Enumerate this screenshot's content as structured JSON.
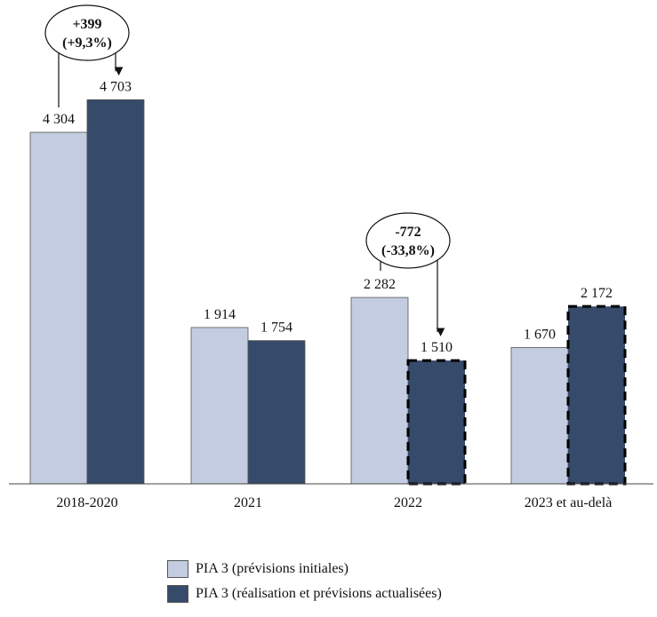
{
  "chart_data": {
    "type": "bar",
    "categories": [
      "2018-2020",
      "2021",
      "2022",
      "2023 et au-delà"
    ],
    "series": [
      {
        "name": "PIA 3 (prévisions initiales)",
        "values": [
          4304,
          1914,
          2282,
          1670
        ],
        "labels": [
          "4 304",
          "1 914",
          "2 282",
          "1 670"
        ],
        "color": "#c3cce0",
        "dashed": [
          false,
          false,
          false,
          false
        ]
      },
      {
        "name": "PIA 3 (réalisation et prévisions actualisées)",
        "values": [
          4703,
          1754,
          1510,
          2172
        ],
        "labels": [
          "4 703",
          "1 754",
          "1 510",
          "2 172"
        ],
        "color": "#364a6a",
        "dashed": [
          false,
          false,
          true,
          true
        ]
      }
    ],
    "ylim": [
      0,
      5000
    ],
    "grid": false,
    "legend": "bottom",
    "annotations": [
      {
        "category": "2018-2020",
        "line1": "+399",
        "line2": "(+9,3%)"
      },
      {
        "category": "2022",
        "line1": "-772",
        "line2": "(-33,8%)"
      }
    ]
  }
}
